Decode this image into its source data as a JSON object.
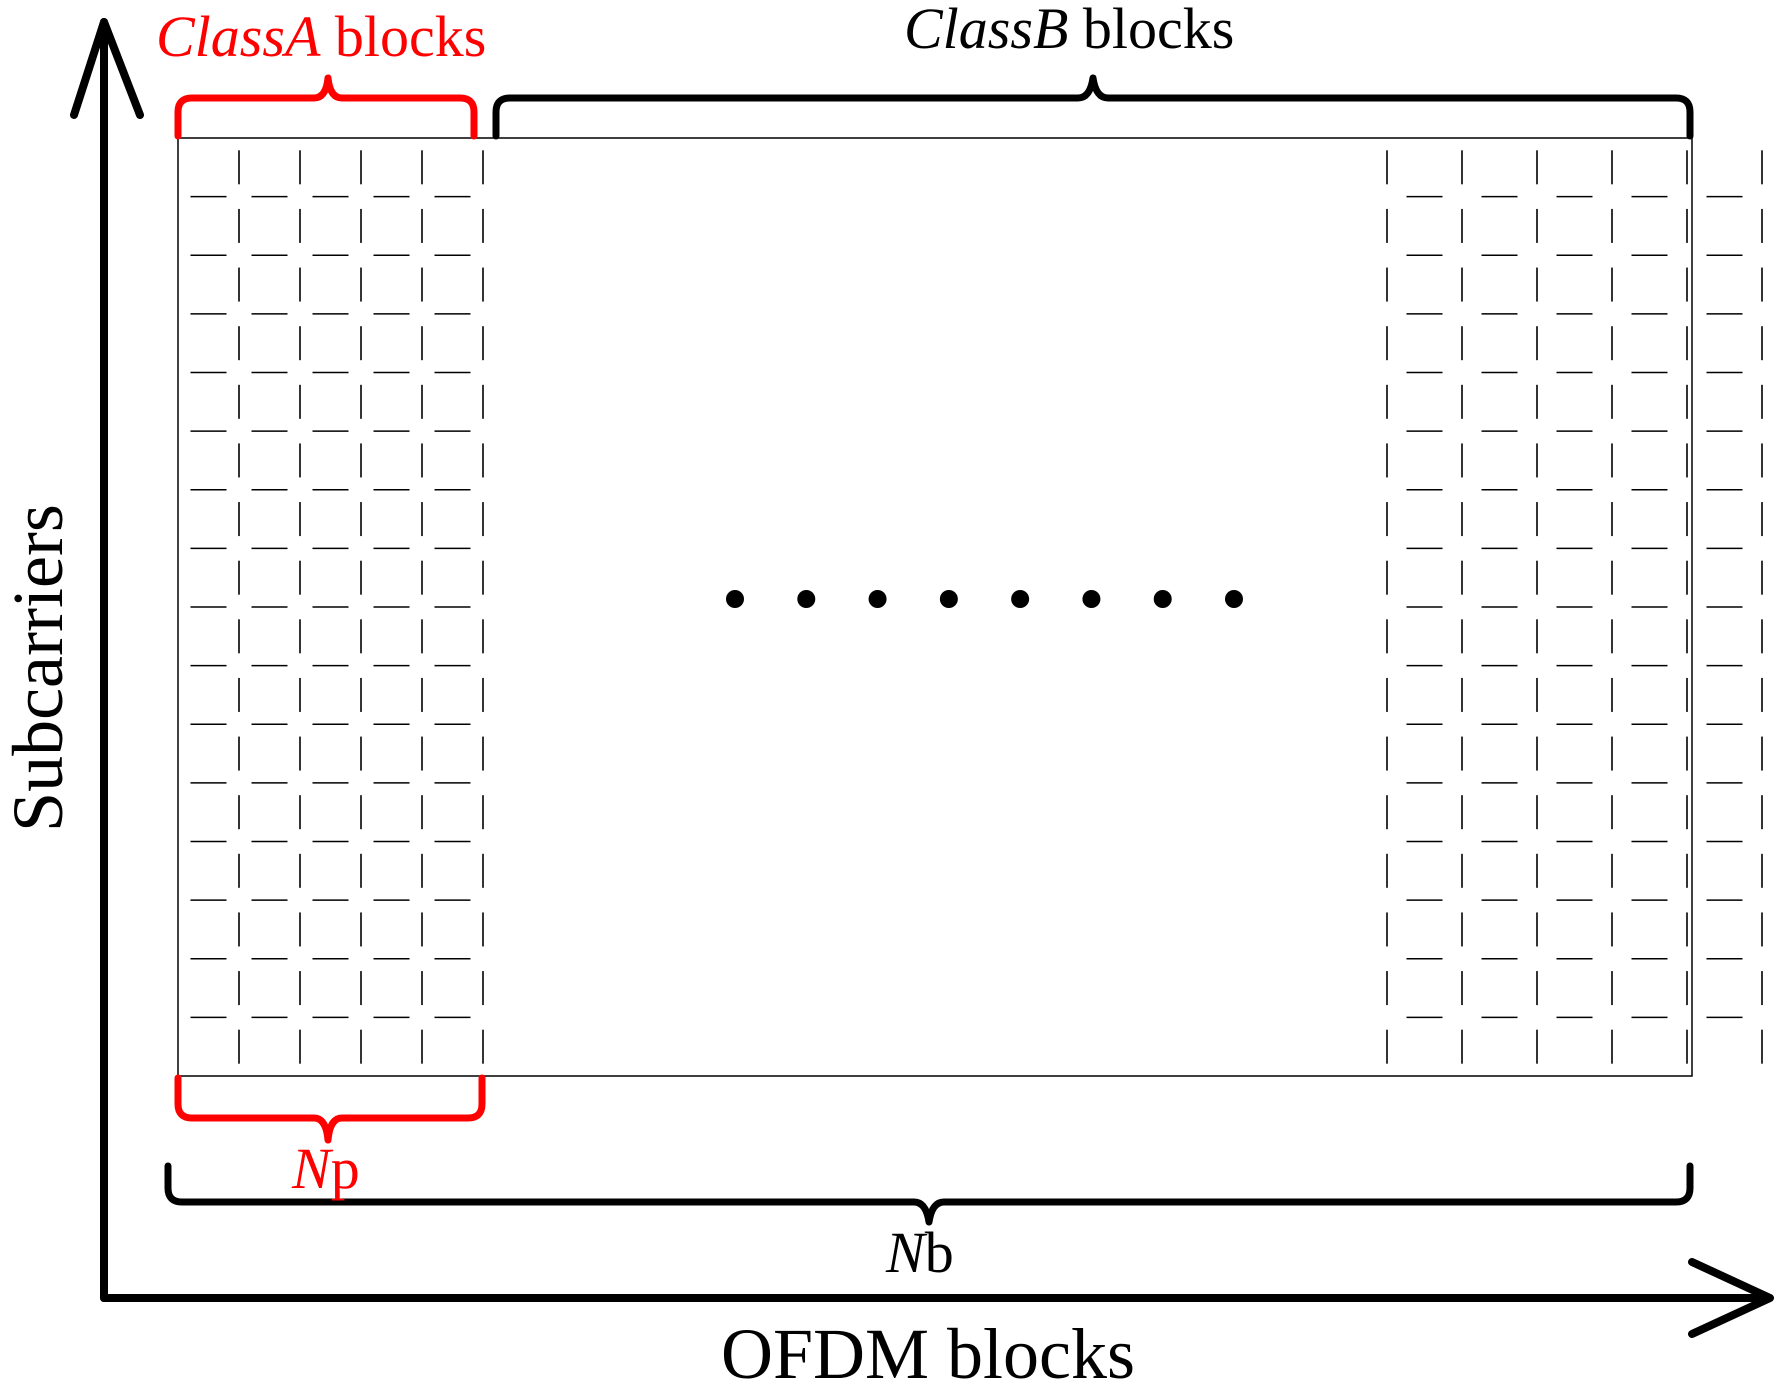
{
  "colors": {
    "accent": "#ff0000",
    "ink": "#000000",
    "background": "#ffffff"
  },
  "labels": {
    "class_a": {
      "italic": "ClassA",
      "rest": " blocks"
    },
    "class_b": {
      "italic": "ClassB",
      "rest": " blocks"
    },
    "np": {
      "italic": "N",
      "rest": "p"
    },
    "nb": {
      "italic": "N",
      "rest": "b"
    },
    "y_axis": "Subcarriers",
    "x_axis": "OFDM blocks"
  },
  "grid": {
    "columns_per_group": 5,
    "rows": 15,
    "gap_dots": 8
  }
}
